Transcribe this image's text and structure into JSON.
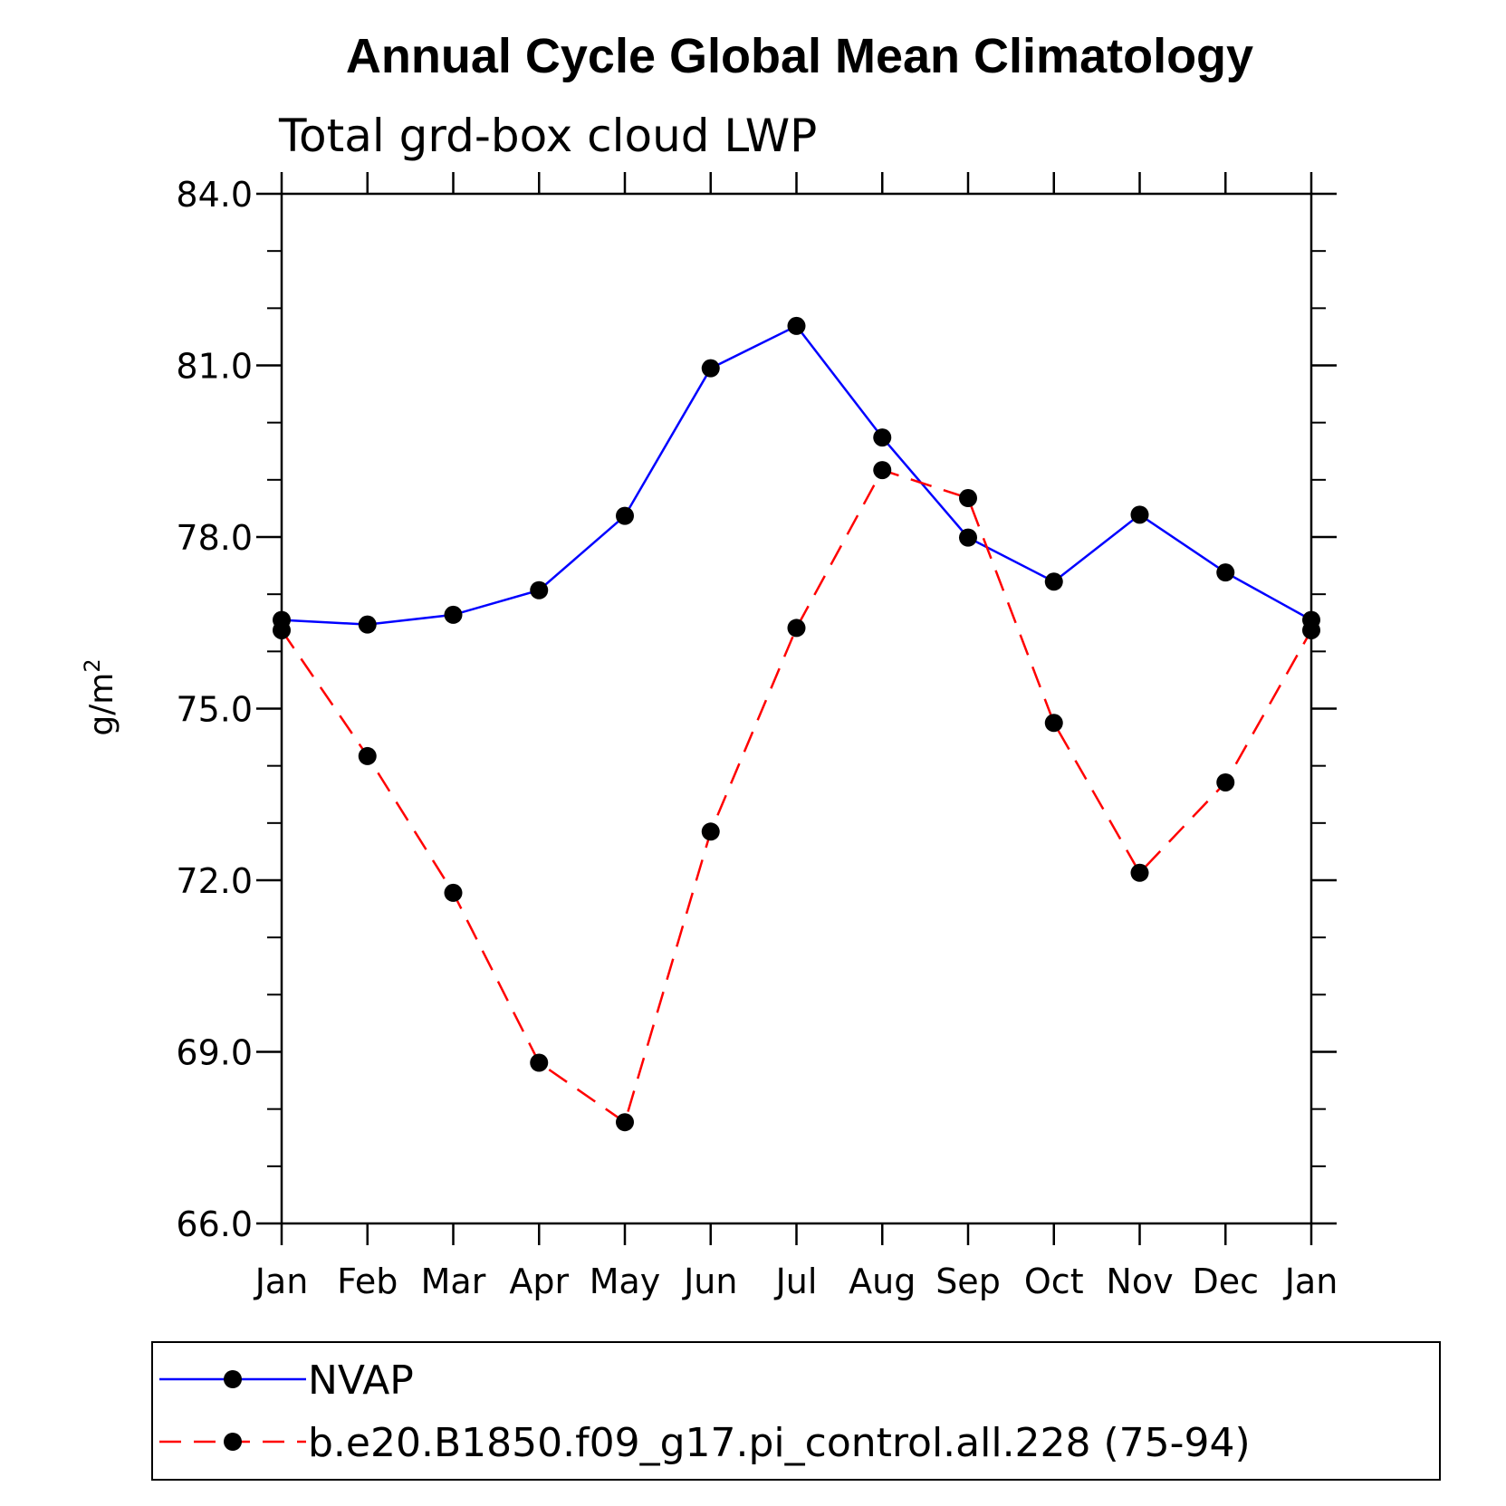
{
  "chart_data": {
    "type": "line",
    "title": "Annual Cycle Global Mean Climatology",
    "subtitle": "Total grd-box cloud LWP",
    "xlabel": "",
    "ylabel": "g/m",
    "ylabel_sup": "2",
    "categories": [
      "Jan",
      "Feb",
      "Mar",
      "Apr",
      "May",
      "Jun",
      "Jul",
      "Aug",
      "Sep",
      "Oct",
      "Nov",
      "Dec",
      "Jan"
    ],
    "ylim": [
      66.0,
      84.0
    ],
    "y_ticks": [
      "66.0",
      "69.0",
      "72.0",
      "75.0",
      "78.0",
      "81.0",
      "84.0"
    ],
    "y_tick_values": [
      66,
      69,
      72,
      75,
      78,
      81,
      84
    ],
    "y_minor_step": 1,
    "grid": false,
    "legend_position": "bottom",
    "series": [
      {
        "name": "NVAP",
        "color": "#0000ff",
        "dash": "solid",
        "values": [
          76.55,
          76.47,
          76.64,
          77.07,
          78.37,
          80.95,
          81.69,
          79.74,
          77.99,
          77.22,
          78.39,
          77.38,
          76.55
        ]
      },
      {
        "name": "b.e20.B1850.f09_g17.pi_control.all.228 (75-94)",
        "color": "#ff0000",
        "dash": "dashed",
        "values": [
          76.37,
          74.17,
          71.78,
          68.81,
          67.77,
          72.85,
          76.41,
          79.17,
          78.68,
          74.75,
          72.13,
          73.71,
          76.37
        ]
      }
    ]
  }
}
